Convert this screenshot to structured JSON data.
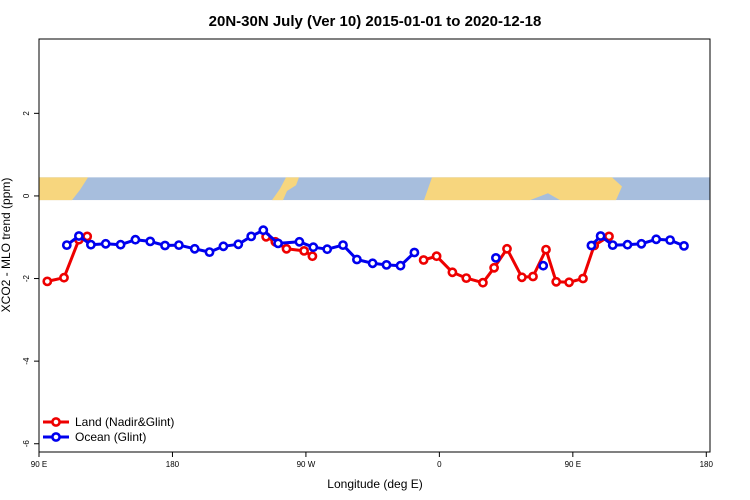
{
  "chart_data": {
    "type": "line",
    "title": "20N-30N July (Ver 10)   2015-01-01 to 2020-12-18",
    "xlabel": "Longitude (deg E)",
    "ylabel": "XCO2 - MLO trend (ppm)",
    "xlim": [
      90,
      452
    ],
    "ylim": [
      -6.2,
      3.8
    ],
    "x_ticks": [
      {
        "value": 90,
        "label": "90 E"
      },
      {
        "value": 162,
        "label": "180"
      },
      {
        "value": 234,
        "label": "90 W"
      },
      {
        "value": 306,
        "label": "0"
      },
      {
        "value": 378,
        "label": "90 E"
      },
      {
        "value": 450,
        "label": "180"
      }
    ],
    "y_ticks": [
      {
        "value": -6,
        "label": "-6"
      },
      {
        "value": -4,
        "label": "-4"
      },
      {
        "value": -2,
        "label": "-2"
      },
      {
        "value": 0,
        "label": "0"
      },
      {
        "value": 2,
        "label": "2"
      }
    ],
    "map_strip": {
      "y_top": 0.45,
      "y_bottom": -0.1,
      "ocean_color": "#a7bedd",
      "land_color": "#f7d67e"
    },
    "legend": "bottom-left",
    "series": [
      {
        "name": "Land (Nadir&Glint)",
        "color": "#ee0000",
        "points": [
          [
            94.5,
            -2.07
          ],
          [
            103.5,
            -1.98
          ],
          [
            111.5,
            -1.06
          ],
          [
            116,
            -0.98
          ],
          [
            212.5,
            -0.99
          ],
          [
            217.5,
            -1.11
          ],
          [
            223.5,
            -1.28
          ],
          [
            233,
            -1.33
          ],
          [
            237.5,
            -1.46
          ],
          [
            297.5,
            -1.55
          ],
          [
            304.5,
            -1.46
          ],
          [
            313,
            -1.85
          ],
          [
            320.5,
            -1.99
          ],
          [
            329.5,
            -2.1
          ],
          [
            335.5,
            -1.74
          ],
          [
            342.5,
            -1.28
          ],
          [
            350.5,
            -1.97
          ],
          [
            356.5,
            -1.95
          ],
          [
            363.5,
            -1.3
          ],
          [
            369,
            -2.08
          ],
          [
            376,
            -2.09
          ],
          [
            383.5,
            -2.0
          ],
          [
            389.5,
            -1.2
          ],
          [
            397.5,
            -0.98
          ]
        ]
      },
      {
        "name": "Ocean (Glint)",
        "color": "#0000ee",
        "points": [
          [
            105,
            -1.19
          ],
          [
            111.5,
            -0.97
          ],
          [
            118,
            -1.18
          ],
          [
            126,
            -1.16
          ],
          [
            134,
            -1.18
          ],
          [
            142,
            -1.06
          ],
          [
            150,
            -1.1
          ],
          [
            158,
            -1.2
          ],
          [
            165.5,
            -1.19
          ],
          [
            174,
            -1.28
          ],
          [
            182,
            -1.36
          ],
          [
            189.5,
            -1.22
          ],
          [
            197.5,
            -1.17
          ],
          [
            204.5,
            -0.98
          ],
          [
            211,
            -0.83
          ],
          [
            219,
            -1.15
          ],
          [
            230.5,
            -1.11
          ],
          [
            238,
            -1.24
          ],
          [
            245.5,
            -1.29
          ],
          [
            254,
            -1.19
          ],
          [
            261.5,
            -1.54
          ],
          [
            270,
            -1.63
          ],
          [
            277.5,
            -1.67
          ],
          [
            285,
            -1.69
          ],
          [
            292.5,
            -1.37
          ],
          [
            336.5,
            -1.5
          ],
          [
            362,
            -1.69
          ],
          [
            388,
            -1.2
          ],
          [
            393,
            -0.97
          ],
          [
            399.5,
            -1.19
          ],
          [
            407.5,
            -1.18
          ],
          [
            415,
            -1.16
          ],
          [
            423,
            -1.05
          ],
          [
            430.5,
            -1.07
          ],
          [
            438,
            -1.21
          ]
        ]
      }
    ],
    "breaks": {
      "Land (Nadir&Glint)": [
        4,
        9
      ],
      "Ocean (Glint)": [
        25,
        26,
        27
      ]
    }
  }
}
